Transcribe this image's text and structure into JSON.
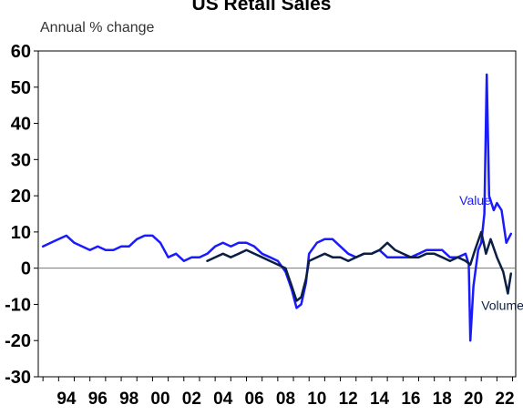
{
  "chart_data": {
    "type": "line",
    "title": "US Retail Sales",
    "ylabel": "Annual % change",
    "xlabel": "",
    "ylim": [
      -30,
      60
    ],
    "xlim": [
      1992.7,
      2023.2
    ],
    "yticks": [
      "60",
      "50",
      "40",
      "30",
      "20",
      "10",
      "0",
      "-10",
      "-20",
      "-30"
    ],
    "xticks": [
      "94",
      "96",
      "98",
      "00",
      "02",
      "04",
      "06",
      "08",
      "10",
      "12",
      "14",
      "16",
      "18",
      "20",
      "22"
    ],
    "grid": false,
    "zero_line": true,
    "series": [
      {
        "name": "Value",
        "color": "#1a1aff",
        "x": [
          1993.0,
          1993.5,
          1994.0,
          1994.5,
          1995.0,
          1995.5,
          1996.0,
          1996.5,
          1997.0,
          1997.5,
          1998.0,
          1998.5,
          1999.0,
          1999.5,
          2000.0,
          2000.5,
          2001.0,
          2001.5,
          2002.0,
          2002.5,
          2003.0,
          2003.5,
          2004.0,
          2004.5,
          2005.0,
          2005.5,
          2006.0,
          2006.5,
          2007.0,
          2007.5,
          2008.0,
          2008.5,
          2008.9,
          2009.2,
          2009.5,
          2009.8,
          2010.0,
          2010.5,
          2011.0,
          2011.5,
          2012.0,
          2012.5,
          2013.0,
          2013.5,
          2014.0,
          2014.5,
          2015.0,
          2015.5,
          2016.0,
          2016.5,
          2017.0,
          2017.5,
          2018.0,
          2018.5,
          2019.0,
          2019.5,
          2020.0,
          2020.2,
          2020.3,
          2020.5,
          2020.8,
          2021.0,
          2021.2,
          2021.35,
          2021.5,
          2021.8,
          2022.0,
          2022.3,
          2022.6,
          2022.9
        ],
        "values": [
          6,
          7,
          8,
          9,
          7,
          6,
          5,
          6,
          5,
          5,
          6,
          6,
          8,
          9,
          9,
          7,
          3,
          4,
          2,
          3,
          3,
          4,
          6,
          7,
          6,
          7,
          7,
          6,
          4,
          3,
          2,
          -1,
          -6,
          -11,
          -10,
          -4,
          4,
          7,
          8,
          8,
          6,
          4,
          3,
          4,
          4,
          5,
          3,
          3,
          3,
          3,
          4,
          5,
          5,
          5,
          3,
          3,
          4,
          1,
          -20,
          -5,
          5,
          7,
          15,
          53.5,
          20,
          16,
          18,
          16,
          7,
          9.5
        ]
      },
      {
        "name": "Volume",
        "color": "#0b1f45",
        "x": [
          2003.5,
          2004.0,
          2004.5,
          2005.0,
          2005.5,
          2006.0,
          2006.5,
          2007.0,
          2007.5,
          2008.0,
          2008.5,
          2008.9,
          2009.2,
          2009.5,
          2009.8,
          2010.0,
          2010.5,
          2011.0,
          2011.5,
          2012.0,
          2012.5,
          2013.0,
          2013.5,
          2014.0,
          2014.5,
          2015.0,
          2015.5,
          2016.0,
          2016.5,
          2017.0,
          2017.5,
          2018.0,
          2018.5,
          2019.0,
          2019.5,
          2020.0,
          2020.3,
          2020.6,
          2021.0,
          2021.3,
          2021.6,
          2022.0,
          2022.4,
          2022.7,
          2022.9
        ],
        "values": [
          2,
          3,
          4,
          3,
          4,
          5,
          4,
          3,
          2,
          1,
          0,
          -5,
          -9,
          -8,
          -3,
          2,
          3,
          4,
          3,
          3,
          2,
          3,
          4,
          4,
          5,
          7,
          5,
          4,
          3,
          3,
          4,
          4,
          3,
          2,
          3,
          2,
          1,
          5,
          10,
          4,
          8,
          3,
          -1,
          -7,
          -1.5
        ]
      }
    ],
    "annotations": [
      "Value",
      "Volume"
    ]
  }
}
